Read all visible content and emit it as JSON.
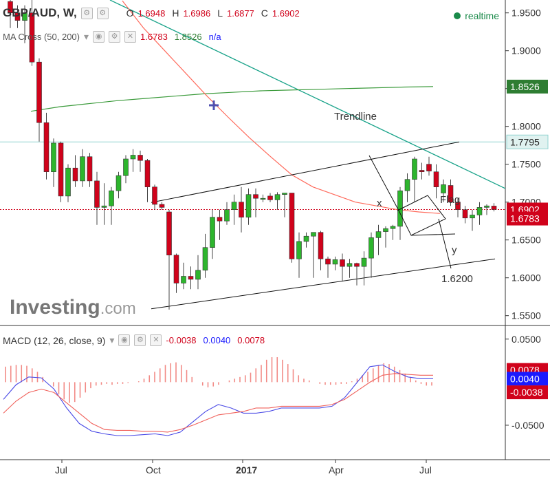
{
  "header": {
    "symbol": "GBP/AUD, W,",
    "o_label": "O",
    "o_value": "1.6948",
    "h_label": "H",
    "h_value": "1.6986",
    "l_label": "L",
    "l_value": "1.6877",
    "c_label": "C",
    "c_value": "1.6902",
    "realtime": "realtime"
  },
  "ma_legend": {
    "label": "MA Cross (50, 200)",
    "v1": "1.6783",
    "v2": "1.8526",
    "v3": "n/a"
  },
  "macd_legend": {
    "label": "MACD (12, 26, close, 9)",
    "v1": "-0.0038",
    "v2": "0.0040",
    "v3": "0.0078"
  },
  "watermark": {
    "main": "Investing",
    "suffix": ".com"
  },
  "annotations": {
    "trendline": "Trendline",
    "flag": "Flag",
    "x": "x",
    "y": "y",
    "target": "1.6200"
  },
  "colors": {
    "up": "#2db52d",
    "down": "#d0021b",
    "ma50": "#ff6a5c",
    "ma200": "#3a9a3a",
    "trend": "#1aa38a",
    "macd": "#4a4ae6",
    "signal": "#f0605a",
    "hist": "#f28a86"
  },
  "chart_data": {
    "type": "candlestick",
    "title": "GBP/AUD, W,",
    "y_ticks": [
      "1.9500",
      "1.9000",
      "1.8500",
      "1.8000",
      "1.7500",
      "1.7000",
      "1.6500",
      "1.6000",
      "1.5500"
    ],
    "ylim": [
      1.537,
      1.967
    ],
    "x_ticks": [
      "Jul",
      "Oct",
      "2017",
      "Apr",
      "Jul"
    ],
    "price_tags": [
      {
        "label": "1.8526",
        "value": 1.8526,
        "color": "#2e7d32"
      },
      {
        "label": "1.7795",
        "value": 1.7795,
        "color": "#e0f2f0"
      },
      {
        "label": "1.6902",
        "value": 1.6902,
        "color": "#d0021b"
      },
      {
        "label": "1.6783",
        "value": 1.6783,
        "color": "#d0021b"
      }
    ],
    "reference_lines": [
      {
        "value": 1.7795,
        "color": "#8fd3d0"
      },
      {
        "value": 1.6902,
        "color": "#d0021b"
      }
    ],
    "candles": [
      [
        1.965,
        1.985,
        1.93,
        1.95
      ],
      [
        1.95,
        1.96,
        1.93,
        1.94
      ],
      [
        1.94,
        1.96,
        1.91,
        1.95
      ],
      [
        1.95,
        1.99,
        1.88,
        1.885
      ],
      [
        1.885,
        1.89,
        1.78,
        1.805
      ],
      [
        1.805,
        1.818,
        1.73,
        1.74
      ],
      [
        1.74,
        1.784,
        1.72,
        1.778
      ],
      [
        1.778,
        1.78,
        1.7,
        1.708
      ],
      [
        1.708,
        1.75,
        1.7,
        1.745
      ],
      [
        1.745,
        1.762,
        1.72,
        1.728
      ],
      [
        1.728,
        1.77,
        1.72,
        1.76
      ],
      [
        1.76,
        1.765,
        1.72,
        1.728
      ],
      [
        1.728,
        1.74,
        1.67,
        1.693
      ],
      [
        1.693,
        1.725,
        1.67,
        1.695
      ],
      [
        1.695,
        1.72,
        1.67,
        1.715
      ],
      [
        1.715,
        1.74,
        1.705,
        1.735
      ],
      [
        1.735,
        1.762,
        1.725,
        1.757
      ],
      [
        1.757,
        1.77,
        1.74,
        1.762
      ],
      [
        1.762,
        1.768,
        1.74,
        1.755
      ],
      [
        1.755,
        1.757,
        1.7,
        1.72
      ],
      [
        1.72,
        1.723,
        1.69,
        1.697
      ],
      [
        1.697,
        1.7,
        1.69,
        1.693
      ],
      [
        1.687,
        1.69,
        1.558,
        1.63
      ],
      [
        1.63,
        1.632,
        1.58,
        1.593
      ],
      [
        1.593,
        1.62,
        1.585,
        1.602
      ],
      [
        1.602,
        1.615,
        1.585,
        1.598
      ],
      [
        1.598,
        1.63,
        1.585,
        1.61
      ],
      [
        1.61,
        1.658,
        1.6,
        1.64
      ],
      [
        1.64,
        1.69,
        1.625,
        1.68
      ],
      [
        1.68,
        1.69,
        1.65,
        1.675
      ],
      [
        1.675,
        1.7,
        1.67,
        1.69
      ],
      [
        1.69,
        1.71,
        1.67,
        1.7
      ],
      [
        1.7,
        1.72,
        1.66,
        1.68
      ],
      [
        1.68,
        1.718,
        1.67,
        1.71
      ],
      [
        1.71,
        1.718,
        1.68,
        1.705
      ],
      [
        1.705,
        1.71,
        1.7,
        1.705
      ],
      [
        1.708,
        1.712,
        1.7,
        1.703
      ],
      [
        1.703,
        1.713,
        1.69,
        1.71
      ],
      [
        1.71,
        1.712,
        1.68,
        1.712
      ],
      [
        1.712,
        1.712,
        1.62,
        1.625
      ],
      [
        1.625,
        1.66,
        1.6,
        1.648
      ],
      [
        1.648,
        1.66,
        1.64,
        1.655
      ],
      [
        1.655,
        1.66,
        1.6,
        1.66
      ],
      [
        1.66,
        1.662,
        1.61,
        1.625
      ],
      [
        1.625,
        1.628,
        1.6,
        1.618
      ],
      [
        1.618,
        1.628,
        1.61,
        1.624
      ],
      [
        1.624,
        1.632,
        1.595,
        1.615
      ],
      [
        1.615,
        1.625,
        1.6,
        1.619
      ],
      [
        1.619,
        1.62,
        1.59,
        1.615
      ],
      [
        1.615,
        1.635,
        1.59,
        1.626
      ],
      [
        1.626,
        1.66,
        1.6,
        1.653
      ],
      [
        1.653,
        1.67,
        1.63,
        1.661
      ],
      [
        1.661,
        1.668,
        1.64,
        1.665
      ],
      [
        1.665,
        1.67,
        1.65,
        1.668
      ],
      [
        1.668,
        1.72,
        1.65,
        1.715
      ],
      [
        1.715,
        1.738,
        1.7,
        1.73
      ],
      [
        1.73,
        1.76,
        1.7,
        1.757
      ],
      [
        1.742,
        1.752,
        1.73,
        1.74
      ],
      [
        1.75,
        1.76,
        1.735,
        1.741
      ],
      [
        1.74,
        1.75,
        1.705,
        1.72
      ],
      [
        1.712,
        1.73,
        1.7,
        1.723
      ],
      [
        1.722,
        1.73,
        1.695,
        1.7
      ],
      [
        1.7,
        1.705,
        1.68,
        1.69
      ],
      [
        1.69,
        1.695,
        1.672,
        1.679
      ],
      [
        1.679,
        1.69,
        1.662,
        1.683
      ],
      [
        1.683,
        1.7,
        1.67,
        1.693
      ],
      [
        1.693,
        1.697,
        1.683,
        1.695
      ],
      [
        1.6948,
        1.6986,
        1.6877,
        1.6902
      ]
    ],
    "ma50": [
      1.966,
      1.93,
      1.9,
      1.87,
      1.84,
      1.812,
      1.785,
      1.76,
      1.736,
      1.72,
      1.71,
      1.7,
      1.695,
      1.69,
      1.687,
      1.685
    ],
    "ma200": [
      1.82,
      1.826,
      1.83,
      1.834,
      1.837,
      1.84,
      1.843,
      1.845,
      1.847,
      1.848,
      1.849,
      1.85,
      1.851,
      1.852,
      1.8526
    ],
    "trendline": [
      [
        1.967,
        1.718
      ]
    ],
    "macd_y_ticks": [
      "0.0500",
      "-0.0500"
    ],
    "macd_ylim": [
      -0.09,
      0.065
    ],
    "macd_value_tags": [
      {
        "label": "0.0078",
        "value": 0.0078,
        "color": "#d0021b"
      },
      {
        "label": "0.0040",
        "value": 0.004,
        "color": "#1a1aff"
      },
      {
        "label": "-0.0038",
        "value": -0.0038,
        "color": "#d0021b"
      }
    ],
    "macd_line": [
      -0.02,
      -0.003,
      0.006,
      0.005,
      -0.008,
      -0.03,
      -0.048,
      -0.057,
      -0.06,
      -0.062,
      -0.062,
      -0.061,
      -0.06,
      -0.062,
      -0.058,
      -0.046,
      -0.034,
      -0.026,
      -0.03,
      -0.036,
      -0.036,
      -0.034,
      -0.03,
      -0.03,
      -0.03,
      -0.03,
      -0.028,
      -0.018,
      0.0,
      0.018,
      0.02,
      0.012,
      0.006,
      0.004,
      0.004
    ],
    "signal_line": [
      -0.036,
      -0.022,
      -0.012,
      -0.008,
      -0.012,
      -0.024,
      -0.036,
      -0.048,
      -0.055,
      -0.056,
      -0.056,
      -0.057,
      -0.057,
      -0.058,
      -0.055,
      -0.05,
      -0.044,
      -0.038,
      -0.036,
      -0.034,
      -0.03,
      -0.03,
      -0.028,
      -0.028,
      -0.028,
      -0.028,
      -0.026,
      -0.02,
      -0.01,
      0.0,
      0.008,
      0.01,
      0.009,
      0.008,
      0.008
    ],
    "histogram": [
      0.018,
      0.019,
      0.02,
      0.02,
      0.019,
      0.016,
      0.012,
      0.006,
      0.0,
      -0.005,
      -0.014,
      -0.02,
      -0.024,
      -0.023,
      -0.018,
      -0.012,
      -0.007,
      -0.004,
      -0.003,
      -0.002,
      -0.003,
      -0.002,
      -0.002,
      -0.001,
      0.0,
      0.001,
      0.004,
      0.008,
      0.012,
      0.016,
      0.02,
      0.022,
      0.023,
      0.02,
      0.014,
      0.006,
      0.0,
      -0.004,
      -0.006,
      -0.005,
      -0.003,
      0.0,
      0.002,
      0.004,
      0.006,
      0.008,
      0.011,
      0.016,
      0.02,
      0.026,
      0.029,
      0.029,
      0.026,
      0.021,
      0.015,
      0.008,
      0.004,
      0.002,
      0.0,
      -0.002,
      -0.003,
      -0.003,
      -0.003,
      -0.002,
      -0.002,
      0.001,
      0.004,
      0.008,
      0.012,
      0.016,
      0.02,
      0.022,
      0.021,
      0.018,
      0.014,
      0.01,
      0.006,
      0.002,
      -0.002,
      -0.004,
      -0.004
    ]
  }
}
